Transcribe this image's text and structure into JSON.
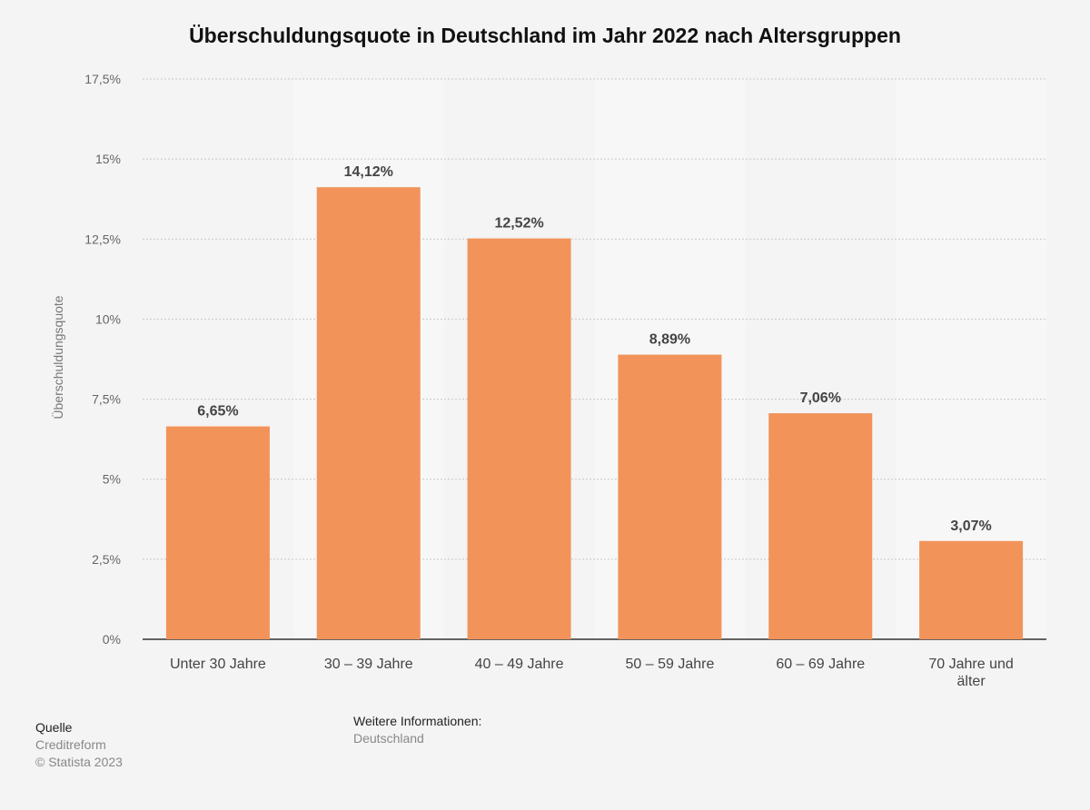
{
  "chart_data": {
    "type": "bar",
    "title": "Überschuldungsquote in Deutschland im Jahr 2022 nach Altersgruppen",
    "ylabel": "Überschuldungsquote",
    "xlabel": "",
    "ylim": [
      0,
      17.5
    ],
    "yticks": [
      0,
      2.5,
      5,
      7.5,
      10,
      12.5,
      15,
      17.5
    ],
    "ytick_labels": [
      "0%",
      "2,5%",
      "5%",
      "7,5%",
      "10%",
      "12,5%",
      "15%",
      "17,5%"
    ],
    "categories": [
      [
        "Unter 30 Jahre"
      ],
      [
        "30 – 39 Jahre"
      ],
      [
        "40 – 49 Jahre"
      ],
      [
        "50 – 59 Jahre"
      ],
      [
        "60 – 69 Jahre"
      ],
      [
        "70 Jahre und",
        "älter"
      ]
    ],
    "values": [
      6.65,
      14.12,
      12.52,
      8.89,
      7.06,
      3.07
    ],
    "value_labels": [
      "6,65%",
      "14,12%",
      "12,52%",
      "8,89%",
      "7,06%",
      "3,07%"
    ],
    "bar_color": "#f2935a",
    "grid": true
  },
  "footer": {
    "source_heading": "Quelle",
    "source_name": "Creditreform",
    "copyright": "© Statista 2023",
    "info_heading": "Weitere Informationen:",
    "info_value": "Deutschland"
  }
}
